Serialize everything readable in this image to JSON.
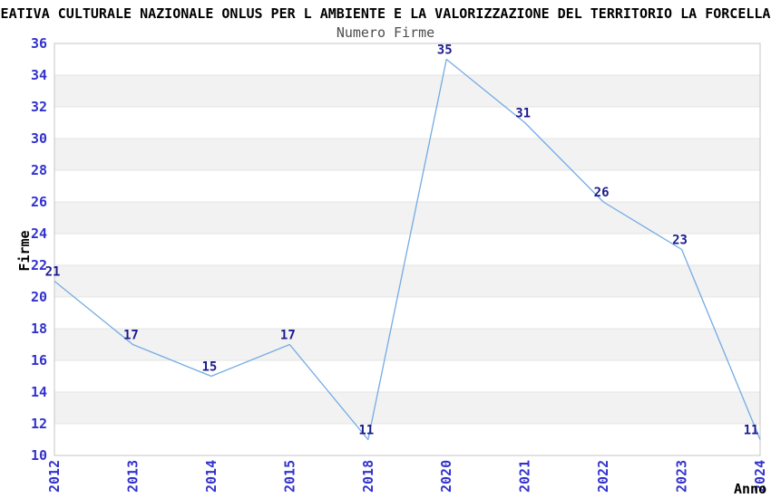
{
  "chart_data": {
    "type": "line",
    "title": "EATIVA CULTURALE NAZIONALE ONLUS PER L AMBIENTE E LA VALORIZZAZIONE DEL TERRITORIO LA FORCELLA",
    "subtitle": "Numero Firme",
    "xlabel": "Anno",
    "ylabel": "Firme",
    "categories": [
      "2012",
      "2013",
      "2014",
      "2015",
      "2018",
      "2020",
      "2021",
      "2022",
      "2023",
      "2024"
    ],
    "values": [
      21,
      17,
      15,
      17,
      11,
      35,
      31,
      26,
      23,
      11
    ],
    "ylim": [
      10,
      36
    ],
    "ytick_step": 2,
    "grid": "horizontal-bands-alternating",
    "legend": "none",
    "colors": {
      "line": "#74abe2",
      "band": "#f2f2f2",
      "gridline": "#e4e4e4",
      "spine": "#c6c6c6",
      "tick_label": "#3232cd",
      "data_label": "#1b1b8e",
      "title": "#000000",
      "subtitle": "#4d4d4d",
      "axis_title": "#000000",
      "background": "#ffffff"
    }
  }
}
